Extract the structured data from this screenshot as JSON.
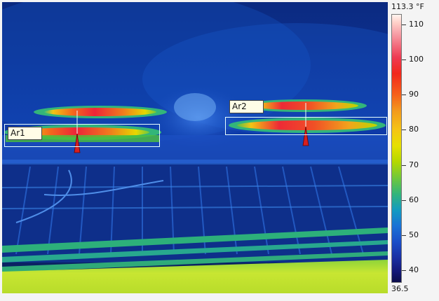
{
  "scale": {
    "max_label": "113.3 °F",
    "min_label": "36.5",
    "ticks": [
      "110",
      "100",
      "90",
      "80",
      "70",
      "60",
      "50",
      "40"
    ]
  },
  "areas": [
    {
      "label": "Ar1"
    },
    {
      "label": "Ar2"
    }
  ],
  "colors": {
    "area_box": "#e8ffff",
    "marker": "#d62020",
    "background_blue": "#0a2a78",
    "floor_yellow": "#c8e632"
  }
}
